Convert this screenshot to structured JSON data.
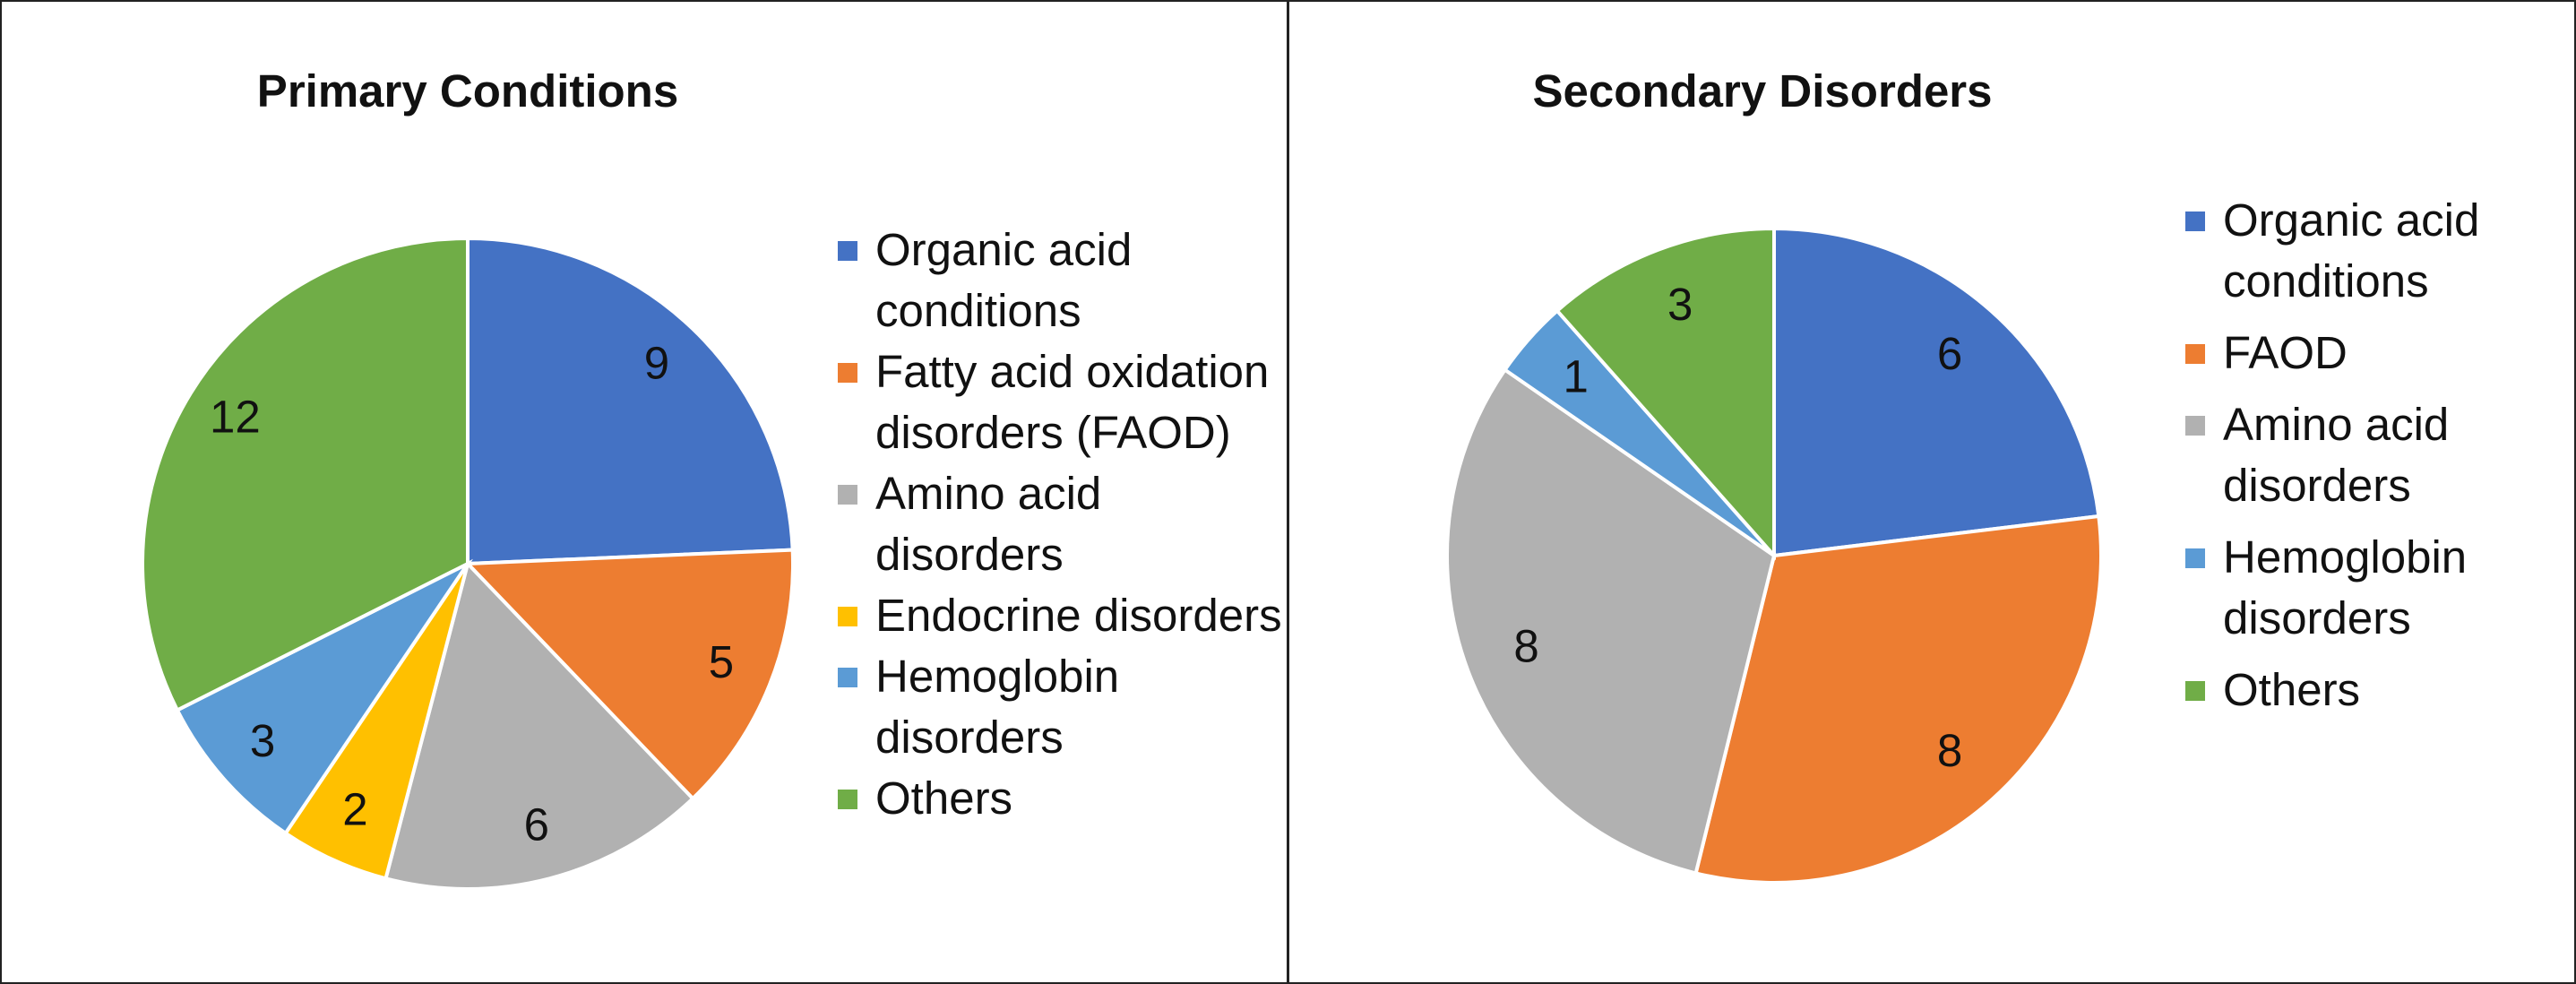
{
  "chart_data": [
    {
      "type": "pie",
      "title": "Primary Conditions",
      "categories": [
        "Organic acid conditions",
        "Fatty acid oxidation disorders (FAOD)",
        "Amino acid disorders",
        "Endocrine disorders",
        "Hemoglobin disorders",
        "Others"
      ],
      "values": [
        9,
        5,
        6,
        2,
        3,
        12
      ],
      "colors": [
        "#4472c4",
        "#ed7d31",
        "#b1b1b1",
        "#ffc000",
        "#5b9bd5",
        "#70ad47"
      ],
      "legend": "right"
    },
    {
      "type": "pie",
      "title": "Secondary Disorders",
      "categories": [
        "Organic acid conditions",
        "FAOD",
        "Amino acid disorders",
        "Hemoglobin disorders",
        "Others"
      ],
      "values": [
        6,
        8,
        8,
        1,
        3
      ],
      "colors": [
        "#4472c4",
        "#ed7d31",
        "#b1b1b1",
        "#5b9bd5",
        "#70ad47"
      ],
      "legend": "right"
    }
  ]
}
